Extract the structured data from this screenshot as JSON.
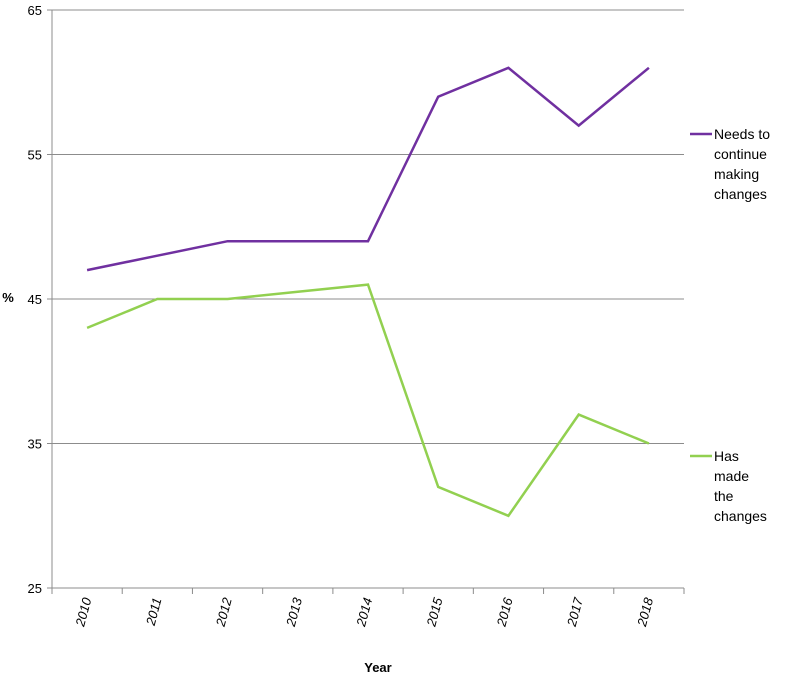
{
  "chart_data": {
    "type": "line",
    "title": "",
    "xlabel": "Year",
    "ylabel": "%",
    "categories": [
      "2010",
      "2011",
      "2012",
      "2013",
      "2014",
      "2015",
      "2016",
      "2017",
      "2018"
    ],
    "ylim": [
      25,
      65
    ],
    "yticks": [
      25,
      35,
      45,
      55,
      65
    ],
    "grid": "horizontal",
    "legend_position": "right",
    "series": [
      {
        "name": "Needs to continue making changes",
        "name_lines": [
          "Needs to",
          "continue",
          "making",
          "changes"
        ],
        "color": "#7030A0",
        "values": [
          47,
          48,
          49,
          49,
          49,
          59,
          61,
          57,
          61
        ]
      },
      {
        "name": "Has made the changes",
        "name_lines": [
          "Has",
          "made",
          "the",
          "changes"
        ],
        "color": "#92D050",
        "values": [
          43,
          45,
          45,
          45.5,
          46,
          32,
          30,
          37,
          35
        ]
      }
    ]
  }
}
